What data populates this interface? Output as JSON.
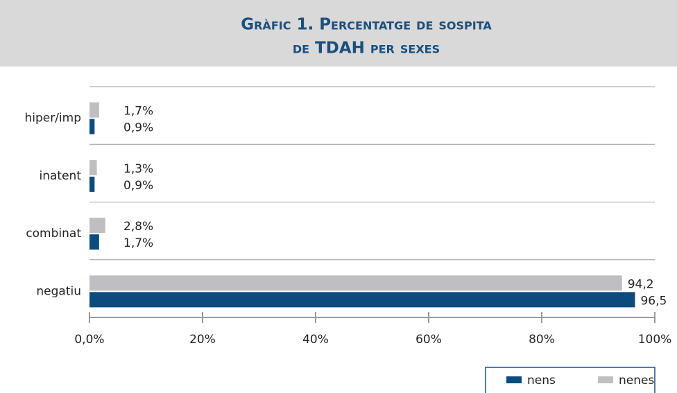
{
  "chart_data": {
    "type": "hbar",
    "title": [
      "Gràfic 1. Percentatge de sospita",
      "de TDAH per sexes"
    ],
    "categories": [
      "hiper/imp",
      "inatent",
      "combinat",
      "negatiu"
    ],
    "series": [
      {
        "name": "nenes",
        "color": "#bfbfc3",
        "values": [
          1.7,
          1.3,
          2.8,
          94.2
        ],
        "value_labels": [
          "1,7%",
          "1,3%",
          "2,8%",
          "94,2"
        ]
      },
      {
        "name": "nens",
        "color": "#0d4a7e",
        "values": [
          0.9,
          0.9,
          1.7,
          96.5
        ],
        "value_labels": [
          "0,9%",
          "0,9%",
          "1,7%",
          "96,5"
        ]
      }
    ],
    "xlim": [
      0,
      100
    ],
    "xticks": [
      {
        "value": 0,
        "label": "0,0%"
      },
      {
        "value": 20,
        "label": "20%"
      },
      {
        "value": 40,
        "label": "40%"
      },
      {
        "value": 60,
        "label": "60%"
      },
      {
        "value": 80,
        "label": "80%"
      },
      {
        "value": 100,
        "label": "100%"
      }
    ],
    "legend": "bottom-right"
  }
}
